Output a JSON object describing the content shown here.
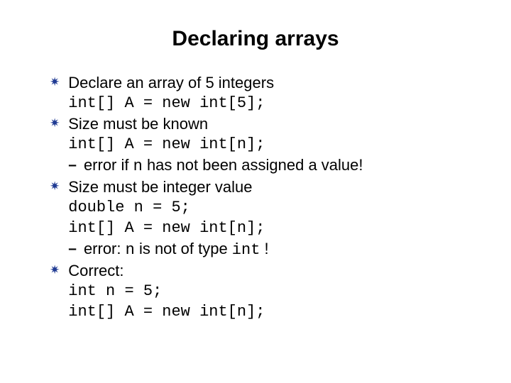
{
  "title": "Declaring arrays",
  "bullets": [
    {
      "text": "Declare an array of 5 integers",
      "code1": "int[] A = new int[5];"
    },
    {
      "text": "Size must be known",
      "code1": "int[] A = new int[n];",
      "sub_pre": "error if ",
      "sub_code": "n",
      "sub_post": " has not been assigned a value!"
    },
    {
      "text": "Size must be integer value",
      "code1": "double n = 5;",
      "code2": "int[] A = new int[n];",
      "sub_pre": "error: ",
      "sub_code": "n",
      "sub_mid": " is not of type ",
      "sub_code2": "int",
      "sub_post": " !"
    },
    {
      "text": "Correct:",
      "code1": "int n = 5;",
      "code2": "int[] A = new int[n];"
    }
  ],
  "colors": {
    "bullet": "#1f3a93",
    "text": "#000000",
    "background": "#ffffff"
  }
}
